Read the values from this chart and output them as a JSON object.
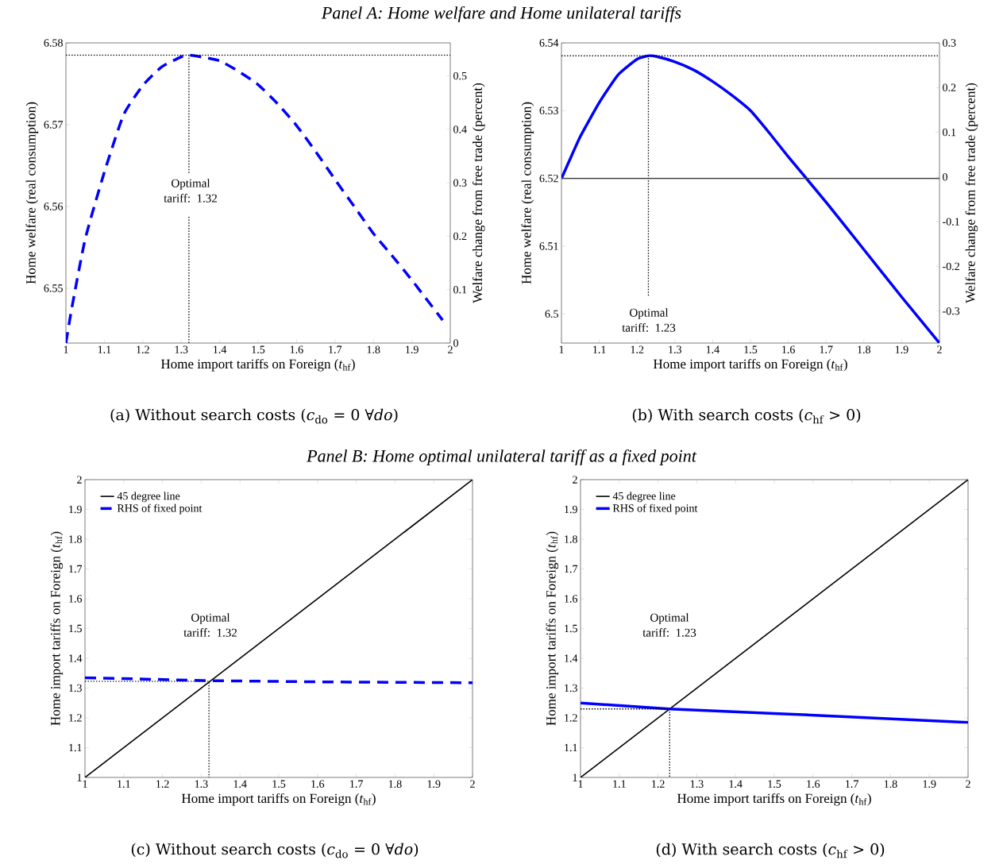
{
  "chart_data": [
    {
      "type": "line",
      "title": "Panel A: Home welfare and Home unilateral tariffs",
      "xlabel": "Home import tariffs on Foreign (*t*$_{hf}$)",
      "ylabel": "Home welfare (real consumption)",
      "y2label": "Welfare change from free trade (percent)",
      "annotations": [
        "Optimal tariff: 1.32",
        "(a) Without search costs (*c*$_{do}$ = 0 ∀*do*)"
      ],
      "xlim": [
        1,
        2
      ],
      "ylim": [
        6.5433,
        6.58
      ],
      "y2lim": [
        0,
        0.5619
      ],
      "xticks": [
        1,
        1.1,
        1.2,
        1.3,
        1.4,
        1.5,
        1.6,
        1.7,
        1.8,
        1.9,
        2
      ],
      "yticks": [
        6.55,
        6.56,
        6.57,
        6.58
      ],
      "y2ticks": [
        0,
        0.1,
        0.2,
        0.3,
        0.4,
        0.5
      ],
      "ref_lines": [
        {
          "axis": "y",
          "value": 6.5785,
          "color": "#000000",
          "line_style": "dotted"
        }
      ],
      "series": [
        {
          "color": "#0000ff",
          "line_style": "dashed",
          "x": [
            1,
            1.015,
            1.05,
            1.1,
            1.15,
            1.2,
            1.25,
            1.3,
            1.32,
            1.35,
            1.4,
            1.45,
            1.5,
            1.55,
            1.6,
            1.65,
            1.7,
            1.75,
            1.8,
            1.85,
            1.9,
            1.98
          ],
          "values": [
            6.5433,
            6.5475,
            6.556,
            6.5642,
            6.5712,
            6.5748,
            6.5771,
            6.5783,
            6.5785,
            6.5783,
            6.5778,
            6.5765,
            6.5749,
            6.5726,
            6.5699,
            6.5667,
            6.5633,
            6.56,
            6.5567,
            6.5539,
            6.551,
            6.5461
          ]
        },
        {
          "color": "#000000",
          "line_style": "dotted",
          "x": [
            1.32,
            1.32
          ],
          "values": [
            6.5433,
            6.5588
          ]
        },
        {
          "color": "#000000",
          "line_style": "dotted",
          "x": [
            1.32,
            1.32
          ],
          "values": [
            6.5641,
            6.5785
          ]
        }
      ]
    },
    {
      "type": "line",
      "xlabel": "Home import tariffs on Foreign (*t*$_{hf}$)",
      "ylabel": "Home welfare (real consumption)",
      "y2label": "Welfare change from free trade (percent)",
      "annotations": [
        "Optimal tariff: 1.23",
        "(b) With search costs (*c*$_{hf}$ > 0)"
      ],
      "xlim": [
        1,
        2
      ],
      "ylim": [
        6.4957,
        6.54
      ],
      "y2lim": [
        -0.3716,
        0.3
      ],
      "xticks": [
        1,
        1.1,
        1.2,
        1.3,
        1.4,
        1.5,
        1.6,
        1.7,
        1.8,
        1.9,
        2
      ],
      "yticks": [
        6.5,
        6.51,
        6.52,
        6.53,
        6.54
      ],
      "y2ticks": [
        -0.3,
        -0.2,
        -0.1,
        0,
        0.1,
        0.2,
        0.3
      ],
      "ref_lines": [
        {
          "axis": "y",
          "value": 6.5381,
          "color": "#000000",
          "line_style": "dotted"
        },
        {
          "axis": "y",
          "value": 6.52,
          "color": "#404040",
          "line_style": "solid"
        }
      ],
      "series": [
        {
          "color": "#0000ff",
          "line_style": "solid",
          "x": [
            1,
            1.02,
            1.05,
            1.1,
            1.15,
            1.2,
            1.23,
            1.25,
            1.3,
            1.35,
            1.4,
            1.45,
            1.5,
            1.55,
            1.6,
            1.7,
            1.8,
            1.9,
            2
          ],
          "values": [
            6.52,
            6.5225,
            6.5262,
            6.5312,
            6.5353,
            6.5376,
            6.5381,
            6.538,
            6.5372,
            6.536,
            6.5343,
            6.5323,
            6.53,
            6.5267,
            6.5232,
            6.5165,
            6.5095,
            6.5025,
            6.4957
          ]
        },
        {
          "color": "#000000",
          "line_style": "dotted",
          "x": [
            1.23,
            1.23
          ],
          "values": [
            6.5027,
            6.5381
          ]
        }
      ]
    },
    {
      "type": "line",
      "title": "Panel B: Home optimal unilateral tariff as a fixed point",
      "xlabel": "Home import tariffs on Foreign (*t*$_{hf}$)",
      "ylabel": "Home import tariffs on Foreign (*t*$_{hf}$)",
      "annotations": [
        "Optimal tariff: 1.32",
        "(c) Without search costs (*c*$_{do}$ = 0 ∀*do*)"
      ],
      "xlim": [
        1,
        2
      ],
      "ylim": [
        1,
        2
      ],
      "legend": "top left",
      "xticks": [
        1,
        1.1,
        1.2,
        1.3,
        1.4,
        1.5,
        1.6,
        1.7,
        1.8,
        1.9,
        2
      ],
      "yticks": [
        1,
        1.1,
        1.2,
        1.3,
        1.4,
        1.5,
        1.6,
        1.7,
        1.8,
        1.9,
        2
      ],
      "series": [
        {
          "name": "45 degree line",
          "color": "#000000",
          "line_style": "solid",
          "x": [
            1,
            2
          ],
          "values": [
            1,
            2
          ]
        },
        {
          "name": "RHS of fixed point",
          "color": "#0000ff",
          "line_style": "dashed",
          "x": [
            1,
            1.32,
            1.6,
            2
          ],
          "values": [
            1.335,
            1.325,
            1.321,
            1.318
          ]
        },
        {
          "color": "#000000",
          "line_style": "dotted",
          "x": [
            1,
            1.32,
            1.32
          ],
          "values": [
            1.323,
            1.323,
            1
          ]
        }
      ]
    },
    {
      "type": "line",
      "xlabel": "Home import tariffs on Foreign (*t*$_{hf}$)",
      "ylabel": "Home import tariffs on Foreign (*t*$_{hf}$)",
      "annotations": [
        "Optimal tariff: 1.23",
        "(d) With search costs (*c*$_{hf}$ > 0)"
      ],
      "xlim": [
        1,
        2
      ],
      "ylim": [
        1,
        2
      ],
      "legend": "top left",
      "xticks": [
        1,
        1.1,
        1.2,
        1.3,
        1.4,
        1.5,
        1.6,
        1.7,
        1.8,
        1.9,
        2
      ],
      "yticks": [
        1,
        1.1,
        1.2,
        1.3,
        1.4,
        1.5,
        1.6,
        1.7,
        1.8,
        1.9,
        2
      ],
      "series": [
        {
          "name": "45 degree line",
          "color": "#000000",
          "line_style": "solid",
          "x": [
            1,
            2
          ],
          "values": [
            1,
            2
          ]
        },
        {
          "name": "RHS of fixed point",
          "color": "#0000ff",
          "line_style": "solid",
          "x": [
            1,
            1.23,
            1.5,
            1.75,
            2
          ],
          "values": [
            1.25,
            1.23,
            1.215,
            1.2,
            1.185
          ]
        },
        {
          "color": "#000000",
          "line_style": "dotted",
          "x": [
            1,
            1.23,
            1.23
          ],
          "values": [
            1.23,
            1.23,
            1
          ]
        }
      ]
    }
  ]
}
